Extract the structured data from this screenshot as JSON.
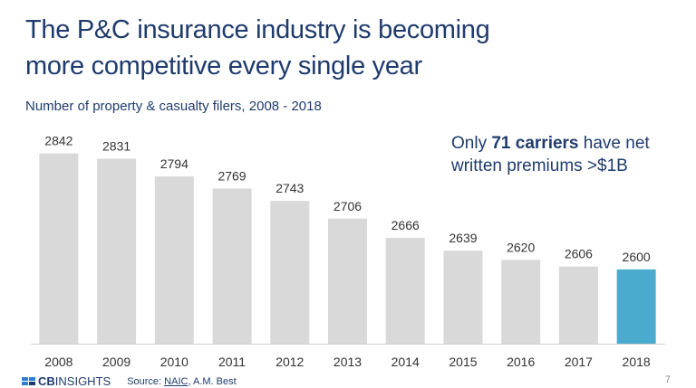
{
  "chart_data": {
    "type": "bar",
    "title_lines": [
      "The P&C insurance industry is becoming",
      "more competitive every single year"
    ],
    "subtitle": "Number of property & casualty filers, 2008 - 2018",
    "categories": [
      "2008",
      "2009",
      "2010",
      "2011",
      "2012",
      "2013",
      "2014",
      "2015",
      "2016",
      "2017",
      "2018"
    ],
    "values": [
      2842,
      2831,
      2794,
      2769,
      2743,
      2706,
      2666,
      2639,
      2620,
      2606,
      2600
    ],
    "colors": [
      "#d9d9d9",
      "#d9d9d9",
      "#d9d9d9",
      "#d9d9d9",
      "#d9d9d9",
      "#d9d9d9",
      "#d9d9d9",
      "#d9d9d9",
      "#d9d9d9",
      "#d9d9d9",
      "#4aabcf"
    ],
    "ylim": [
      2445,
      2900
    ],
    "annotation": [
      "Only",
      "71 carriers",
      "have net",
      "written premiums >$1B"
    ]
  },
  "footer": {
    "brand_bold": "CB",
    "brand": "INSIGHTS",
    "source_label": "Source:",
    "source_link": "NAIC",
    "source_rest": ", A.M. Best",
    "page": "7"
  }
}
